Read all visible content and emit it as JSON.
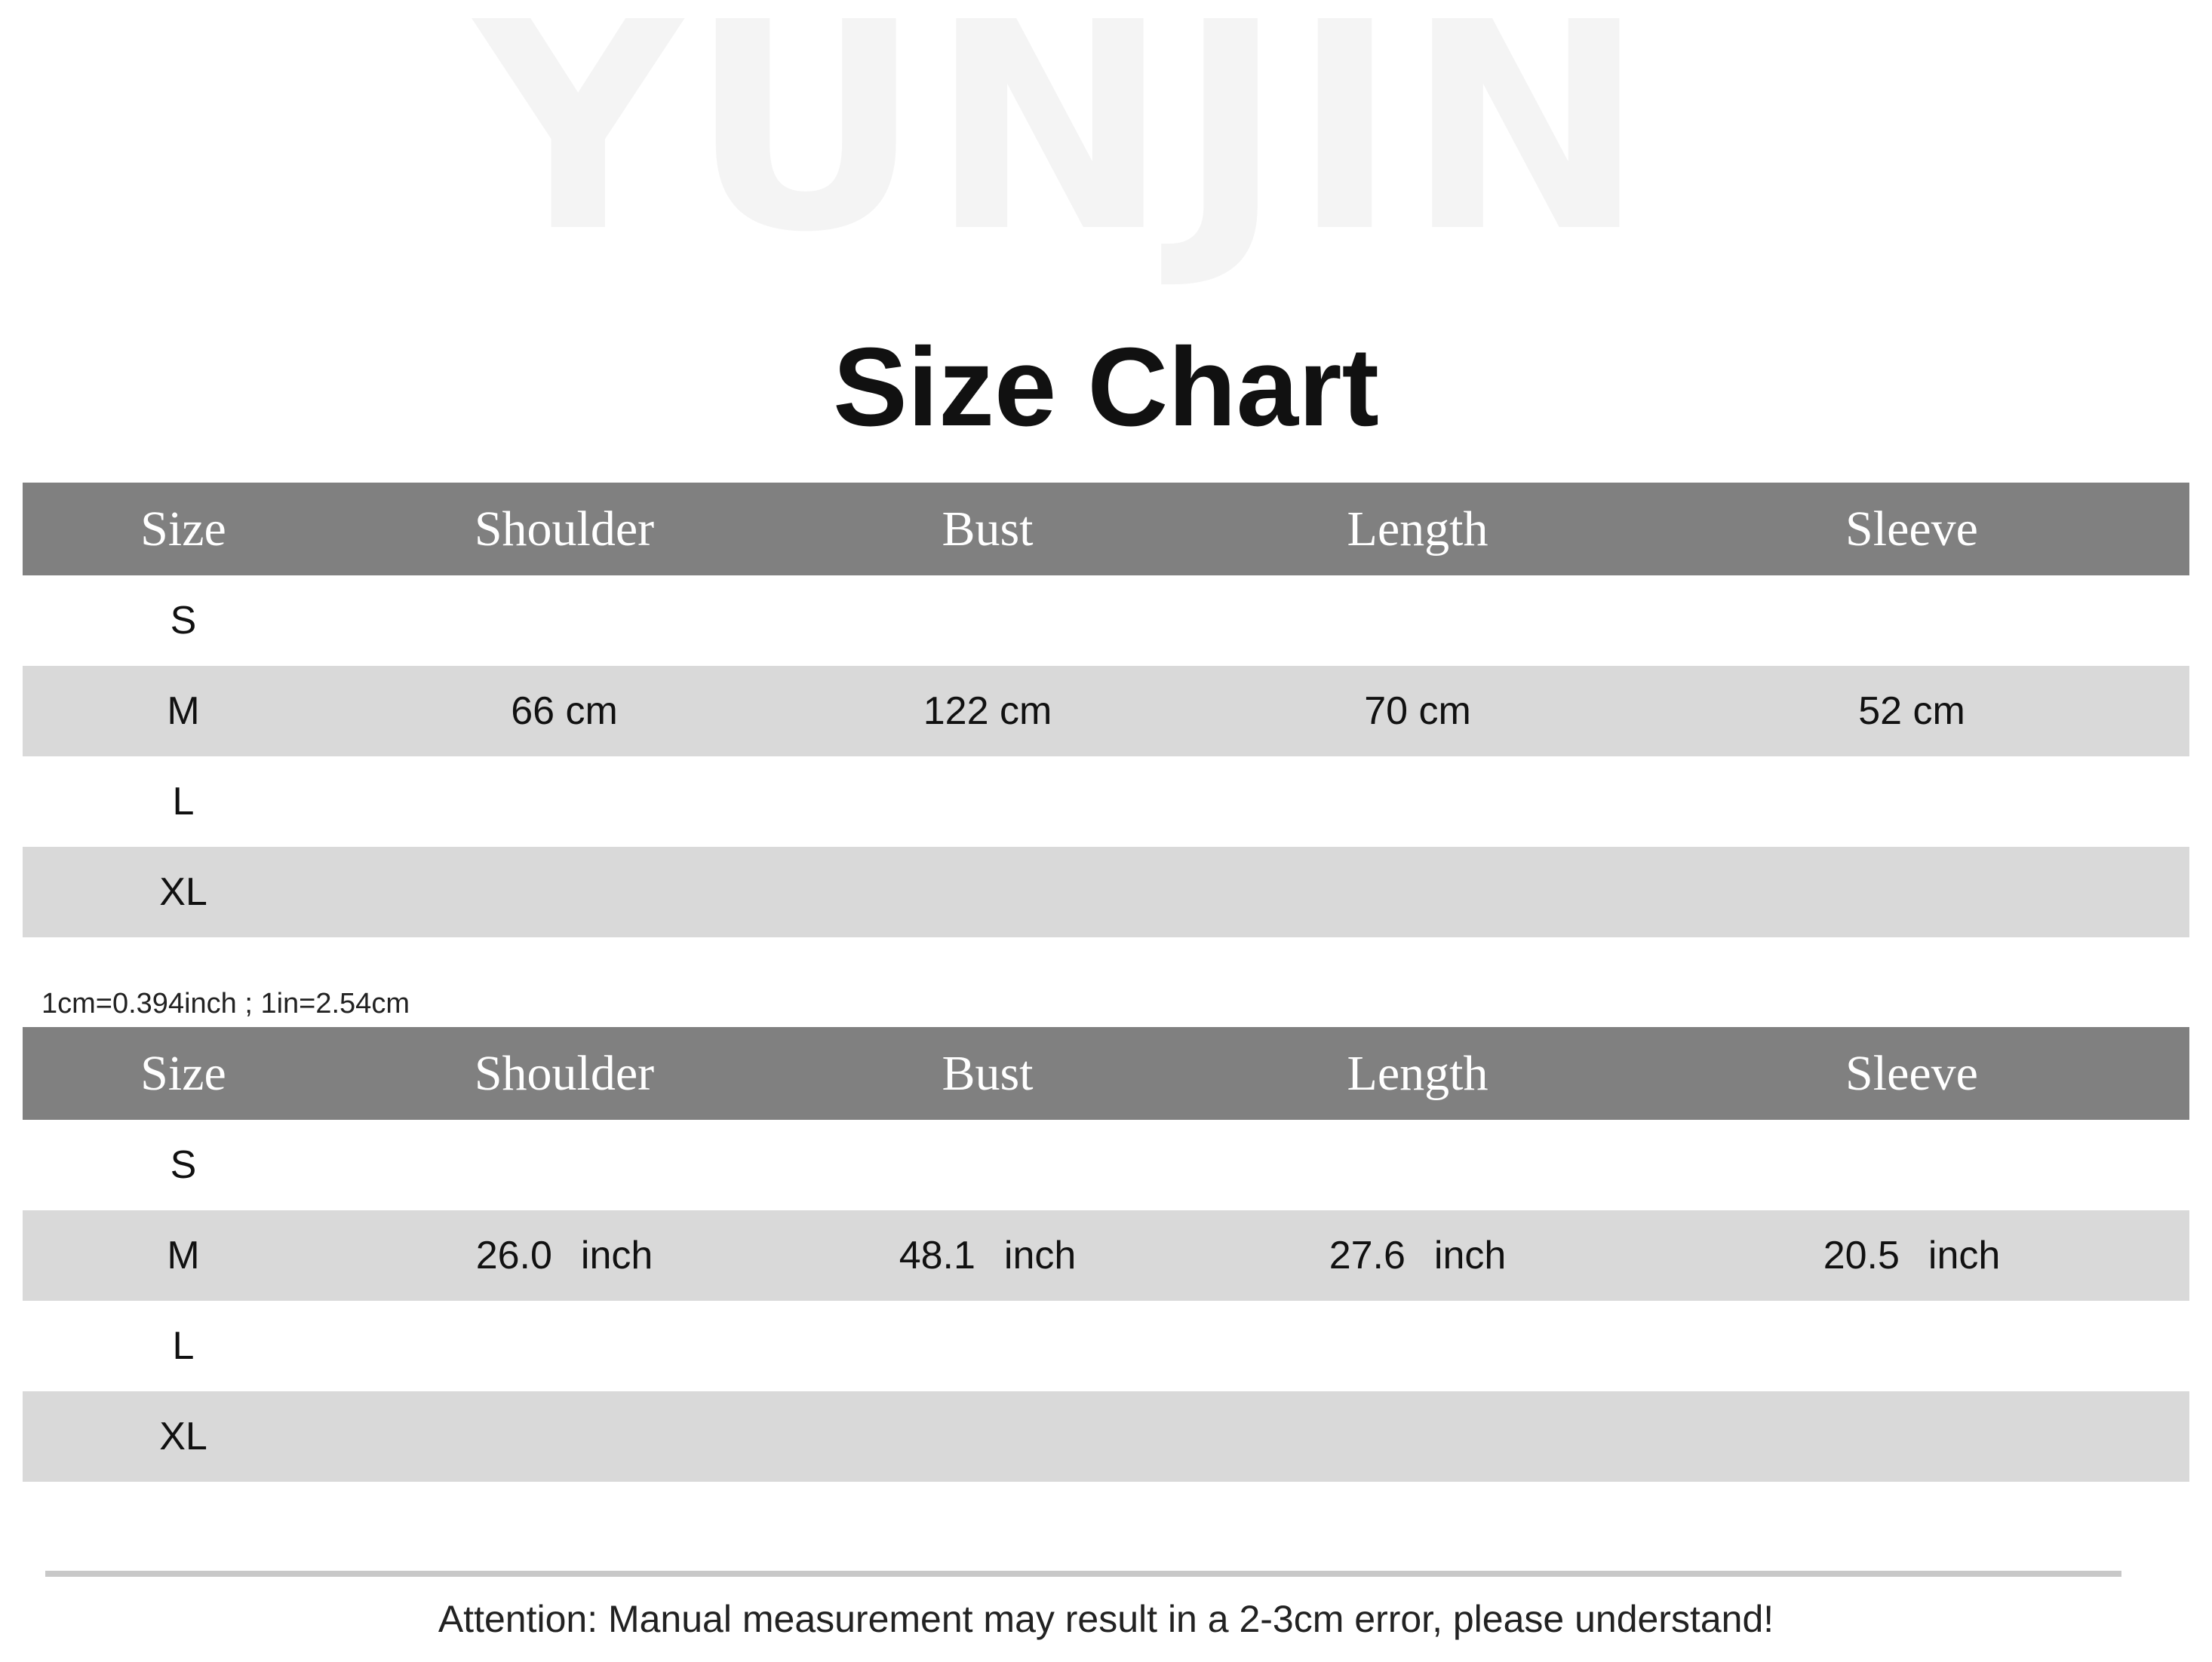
{
  "watermark": "YUNJIN",
  "title": "Size Chart",
  "columns": [
    "Size",
    "Shoulder",
    "Bust",
    "Length",
    "Sleeve"
  ],
  "cm_table": {
    "rows": [
      {
        "size": "S",
        "values": [
          "",
          "",
          "",
          ""
        ]
      },
      {
        "size": "M",
        "values": [
          "66 cm",
          "122 cm",
          "70 cm",
          "52 cm"
        ]
      },
      {
        "size": "L",
        "values": [
          "",
          "",
          "",
          ""
        ]
      },
      {
        "size": "XL",
        "values": [
          "",
          "",
          "",
          ""
        ]
      }
    ]
  },
  "conversion_note": "1cm=0.394inch ; 1in=2.54cm",
  "inch_table": {
    "unit": "inch",
    "rows": [
      {
        "size": "S",
        "values": [
          "",
          "",
          "",
          ""
        ]
      },
      {
        "size": "M",
        "values": [
          "26.0",
          "48.1",
          "27.6",
          "20.5"
        ]
      },
      {
        "size": "L",
        "values": [
          "",
          "",
          "",
          ""
        ]
      },
      {
        "size": "XL",
        "values": [
          "",
          "",
          "",
          ""
        ]
      }
    ]
  },
  "attention": "Attention: Manual measurement may result in a 2-3cm error, please understand!",
  "colors": {
    "header_bg": "#808080",
    "alt_row_bg": "#d9d9d9"
  }
}
